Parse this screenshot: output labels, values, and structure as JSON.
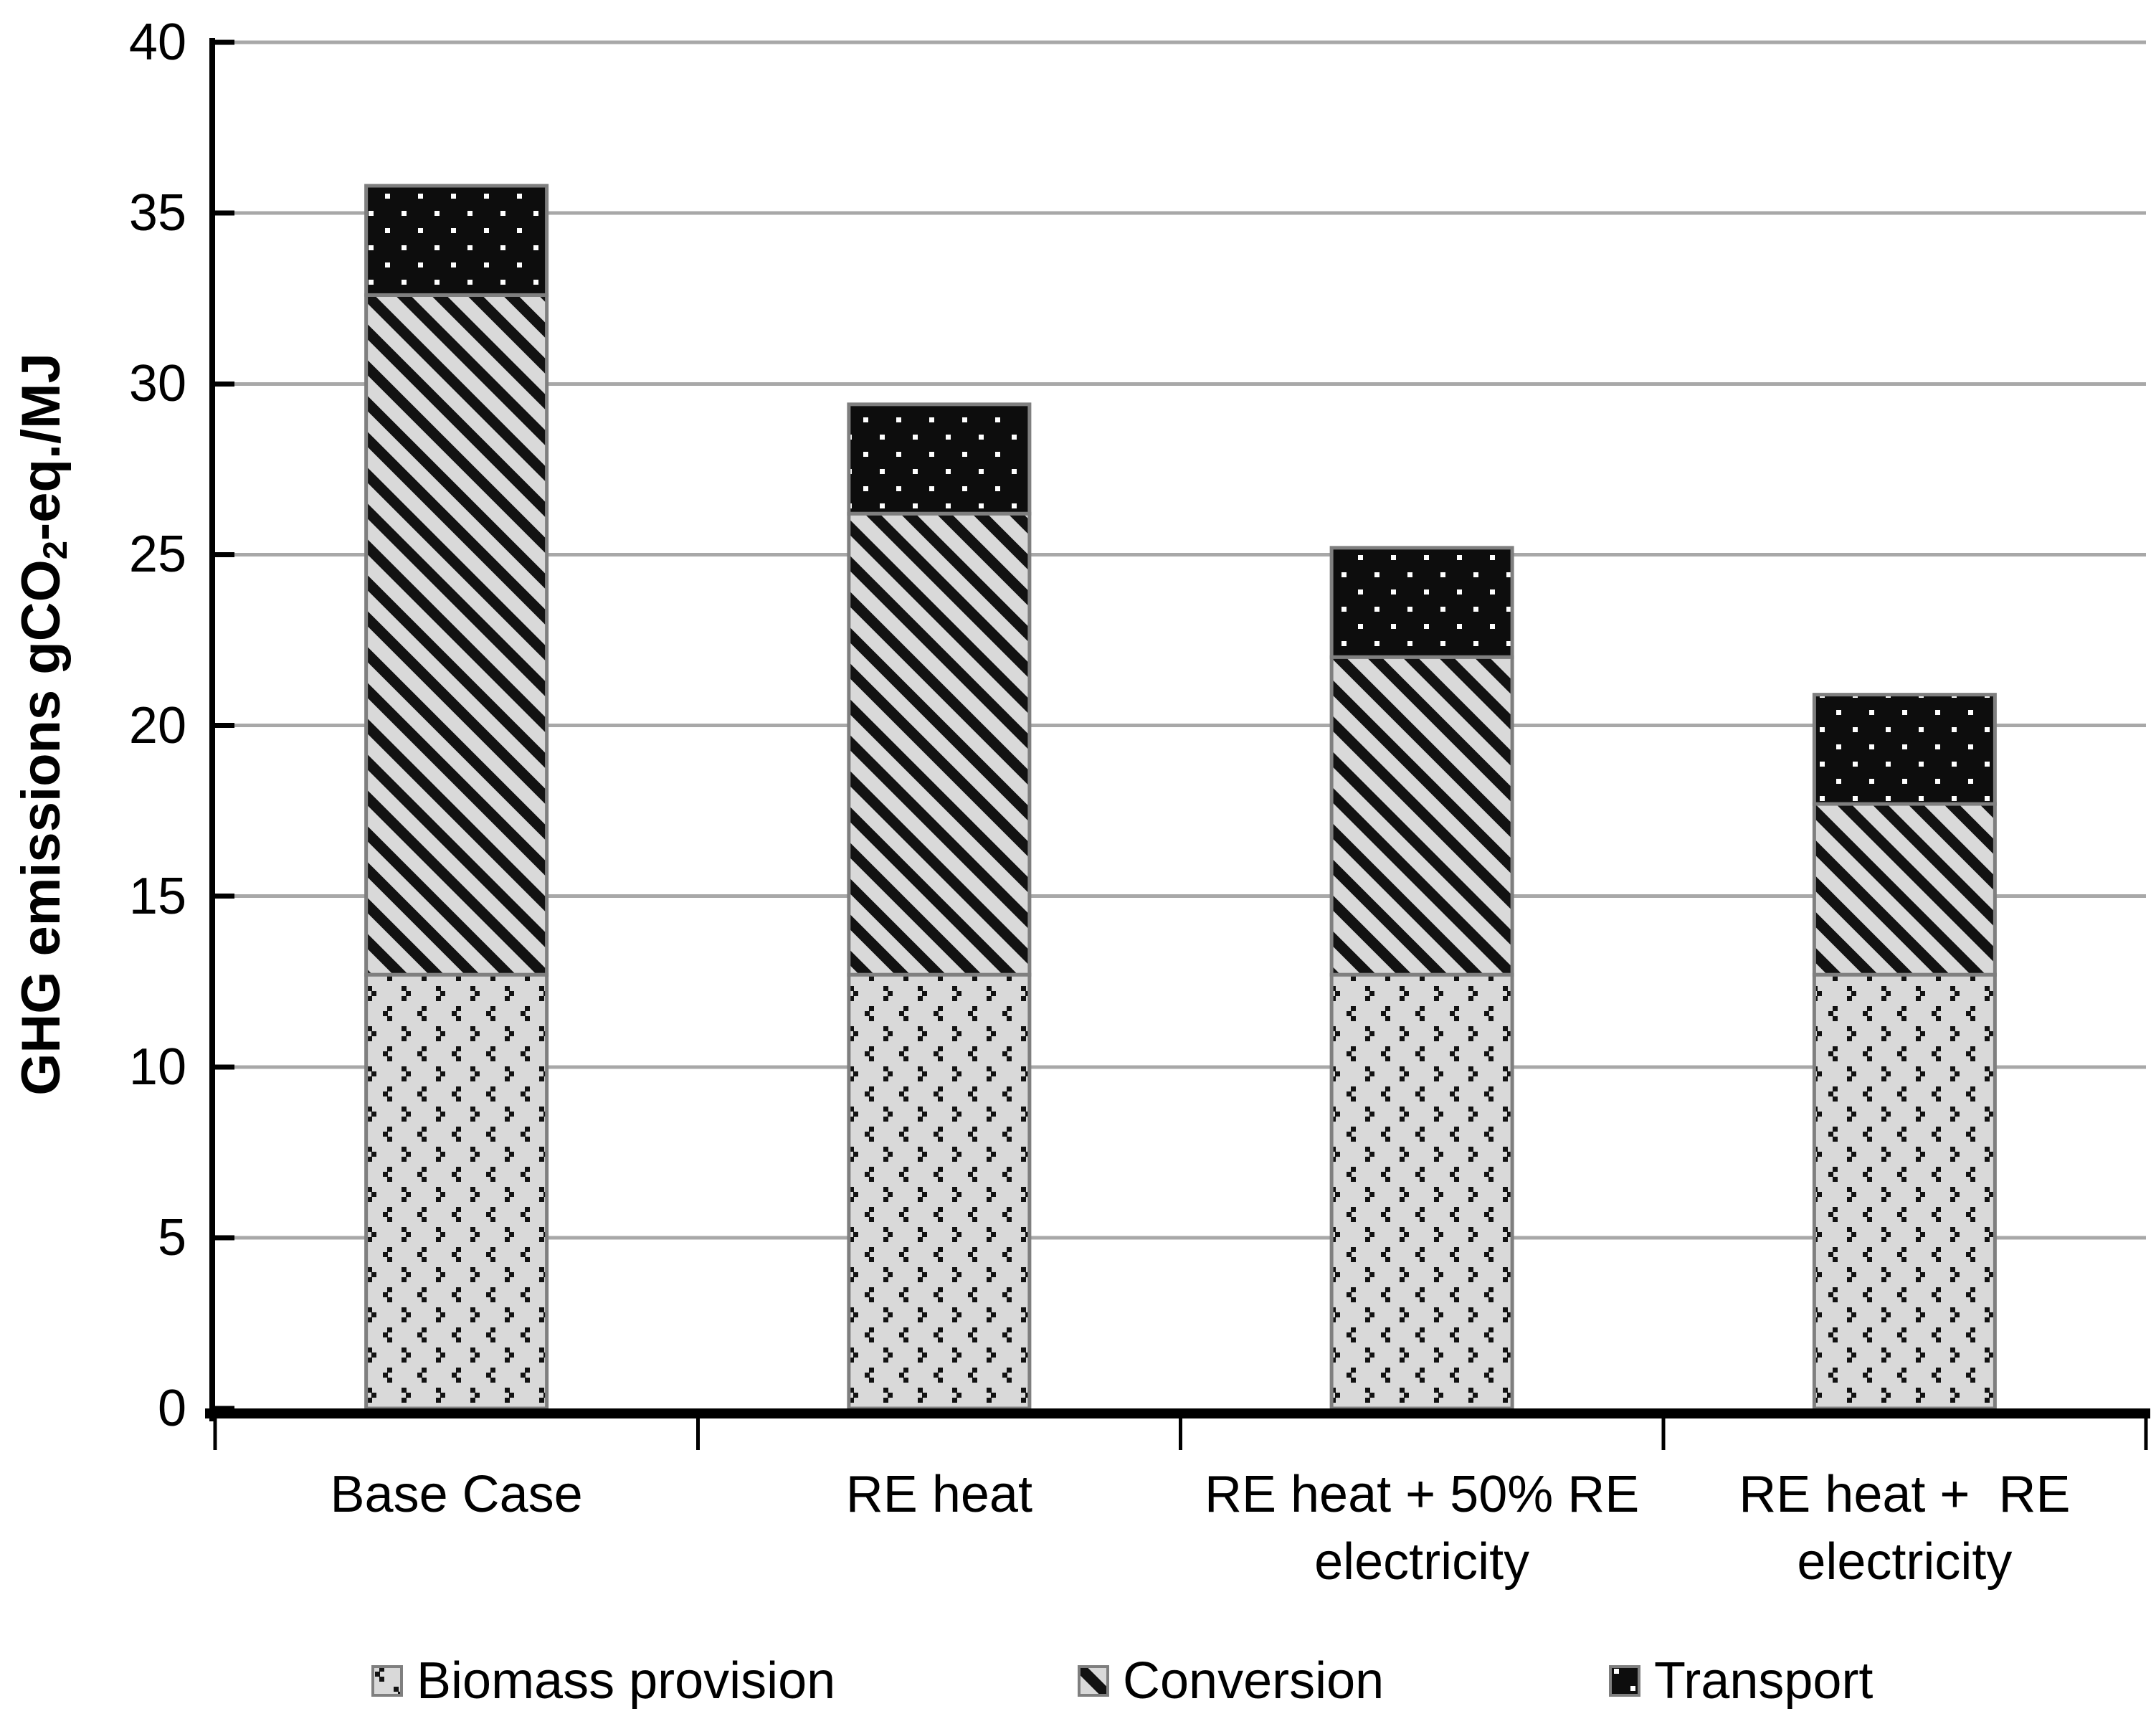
{
  "page": {
    "background": "#ffffff"
  },
  "y_axis": {
    "title_pre": "GHG emissions gCO",
    "title_sub": "2",
    "title_post": "-eq./MJ",
    "ticks": [
      0,
      5,
      10,
      15,
      20,
      25,
      30,
      35,
      40
    ]
  },
  "x_axis": {
    "category_display_lines": [
      [
        "Base Case"
      ],
      [
        "RE heat"
      ],
      [
        "RE heat + 50% RE",
        "electricity"
      ],
      [
        "RE heat +  RE",
        "electricity"
      ]
    ]
  },
  "colors": {
    "pattern_light_gray": "#d9d9d9",
    "pattern_black": "#121212",
    "transport_black": "#0d0d0d",
    "white_dot": "#ffffff",
    "bar_border_gray": "#7f7f7f",
    "gridline_gray": "#a8a8a8",
    "axis_black": "#000000"
  },
  "chart_data": {
    "type": "bar",
    "stacked": true,
    "title": "",
    "xlabel": "",
    "ylabel": "GHG emissions gCO2-eq./MJ",
    "ylim": [
      0,
      40
    ],
    "ytick_step": 5,
    "grid": true,
    "legend_position": "bottom",
    "categories": [
      "Base Case",
      "RE heat",
      "RE heat + 50% RE electricity",
      "RE heat + RE electricity"
    ],
    "series": [
      {
        "name": "Biomass provision",
        "pattern_id": "biomass",
        "pattern_style": "light gray with black dotted-diamond marks",
        "values": [
          12.7,
          12.7,
          12.7,
          12.7
        ]
      },
      {
        "name": "Conversion",
        "pattern_id": "conversion",
        "pattern_style": "light gray with thick black diagonal stripes",
        "values": [
          19.9,
          13.5,
          9.3,
          5.0
        ]
      },
      {
        "name": "Transport",
        "pattern_id": "transport",
        "pattern_style": "black with small white dots",
        "values": [
          3.2,
          3.2,
          3.2,
          3.2
        ]
      }
    ]
  }
}
